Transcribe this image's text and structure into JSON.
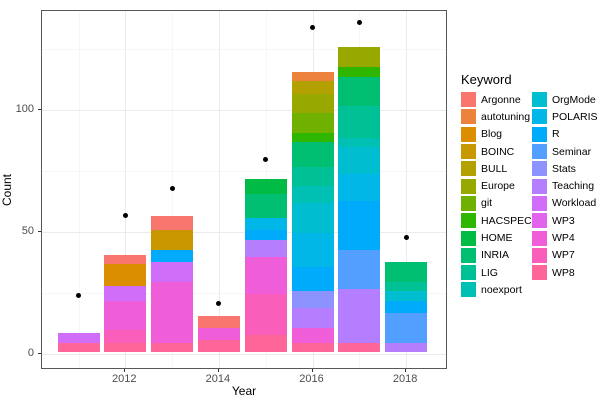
{
  "figure": {
    "legend": {
      "title": "Keyword",
      "entries": [
        "Argonne",
        "autotuning",
        "Blog",
        "BOINC",
        "BULL",
        "Europe",
        "git",
        "HACSPECIS",
        "HOME",
        "INRIA",
        "LIG",
        "noexport",
        "OrgMode",
        "POLARIS",
        "R",
        "Seminar",
        "Stats",
        "Teaching",
        "Workload",
        "WP3",
        "WP4",
        "WP7",
        "WP8"
      ]
    },
    "palette": {
      "Argonne": "#F8766D",
      "autotuning": "#EC823C",
      "Blog": "#DB8E00",
      "BOINC": "#C99800",
      "BULL": "#B2A100",
      "Europe": "#97A900",
      "git": "#6FB000",
      "HACSPECIS": "#2FB600",
      "HOME": "#00BB44",
      "INRIA": "#00BF73",
      "LIG": "#00C096",
      "noexport": "#00C0B4",
      "OrgMode": "#00BDD0",
      "POLARIS": "#00B7E8",
      "R": "#00ABFC",
      "Seminar": "#529FFF",
      "Stats": "#8C93FF",
      "Teaching": "#B57EFF",
      "Workload": "#D06DF9",
      "WP3": "#E264EC",
      "WP4": "#EF5DD8",
      "WP7": "#F95EBB",
      "WP8": "#FE6598"
    },
    "point_color": "#000000",
    "grid_major_color": "#ebebeb",
    "grid_minor_color": "#f6f6f6"
  },
  "chart_data": {
    "type": "bar",
    "subtype": "stacked-bars-with-points",
    "title": "",
    "xlabel": "Year",
    "ylabel": "Count",
    "x": [
      2011,
      2012,
      2013,
      2014,
      2015,
      2016,
      2017,
      2018
    ],
    "x_tick_labels": [
      "2012",
      "2014",
      "2016",
      "2018"
    ],
    "x_ticks": [
      2012,
      2014,
      2016,
      2018
    ],
    "x_minor": [
      2011,
      2013,
      2015,
      2017
    ],
    "y_tick_labels": [
      "0",
      "50",
      "100"
    ],
    "y_ticks": [
      0,
      50,
      100
    ],
    "y_minor": [
      25,
      75,
      125
    ],
    "ylim": [
      -6,
      141
    ],
    "grid": true,
    "legend_position": "right",
    "stacks": [
      {
        "year": 2011,
        "total": 8,
        "segments": [
          {
            "keyword": "Workload",
            "value": 4
          },
          {
            "keyword": "WP8",
            "value": 4
          }
        ]
      },
      {
        "year": 2012,
        "total": 40,
        "segments": [
          {
            "keyword": "Argonne",
            "value": 4
          },
          {
            "keyword": "Blog",
            "value": 9
          },
          {
            "keyword": "Workload",
            "value": 6
          },
          {
            "keyword": "WP4",
            "value": 12
          },
          {
            "keyword": "WP7",
            "value": 5
          },
          {
            "keyword": "WP8",
            "value": 4
          }
        ]
      },
      {
        "year": 2013,
        "total": 56,
        "segments": [
          {
            "keyword": "Argonne",
            "value": 6
          },
          {
            "keyword": "BOINC",
            "value": 8
          },
          {
            "keyword": "R",
            "value": 5
          },
          {
            "keyword": "Workload",
            "value": 8
          },
          {
            "keyword": "WP4",
            "value": 25
          },
          {
            "keyword": "WP8",
            "value": 4
          }
        ]
      },
      {
        "year": 2014,
        "total": 15,
        "segments": [
          {
            "keyword": "Argonne",
            "value": 5
          },
          {
            "keyword": "WP4",
            "value": 5
          },
          {
            "keyword": "WP8",
            "value": 5
          }
        ]
      },
      {
        "year": 2015,
        "total": 71,
        "segments": [
          {
            "keyword": "HOME",
            "value": 6
          },
          {
            "keyword": "INRIA",
            "value": 10
          },
          {
            "keyword": "POLARIS",
            "value": 5
          },
          {
            "keyword": "R",
            "value": 4
          },
          {
            "keyword": "Teaching",
            "value": 7
          },
          {
            "keyword": "WP4",
            "value": 15
          },
          {
            "keyword": "WP7",
            "value": 17
          },
          {
            "keyword": "WP8",
            "value": 7
          }
        ]
      },
      {
        "year": 2016,
        "total": 115,
        "segments": [
          {
            "keyword": "autotuning",
            "value": 4
          },
          {
            "keyword": "BULL",
            "value": 5
          },
          {
            "keyword": "Europe",
            "value": 8
          },
          {
            "keyword": "git",
            "value": 8
          },
          {
            "keyword": "HACSPECIS",
            "value": 4
          },
          {
            "keyword": "INRIA",
            "value": 10
          },
          {
            "keyword": "LIG",
            "value": 8
          },
          {
            "keyword": "noexport",
            "value": 7
          },
          {
            "keyword": "OrgMode",
            "value": 12
          },
          {
            "keyword": "POLARIS",
            "value": 14
          },
          {
            "keyword": "R",
            "value": 10
          },
          {
            "keyword": "Stats",
            "value": 7
          },
          {
            "keyword": "Teaching",
            "value": 8
          },
          {
            "keyword": "WP4",
            "value": 6
          },
          {
            "keyword": "WP8",
            "value": 4
          }
        ]
      },
      {
        "year": 2017,
        "total": 125,
        "segments": [
          {
            "keyword": "Europe",
            "value": 8
          },
          {
            "keyword": "HACSPECIS",
            "value": 4
          },
          {
            "keyword": "INRIA",
            "value": 12
          },
          {
            "keyword": "LIG",
            "value": 13
          },
          {
            "keyword": "noexport",
            "value": 4
          },
          {
            "keyword": "OrgMode",
            "value": 11
          },
          {
            "keyword": "POLARIS",
            "value": 11
          },
          {
            "keyword": "R",
            "value": 20
          },
          {
            "keyword": "Seminar",
            "value": 16
          },
          {
            "keyword": "Teaching",
            "value": 22
          },
          {
            "keyword": "WP8",
            "value": 4
          }
        ]
      },
      {
        "year": 2018,
        "total": 37,
        "segments": [
          {
            "keyword": "INRIA",
            "value": 8
          },
          {
            "keyword": "LIG",
            "value": 4
          },
          {
            "keyword": "OrgMode",
            "value": 4
          },
          {
            "keyword": "R",
            "value": 5
          },
          {
            "keyword": "Seminar",
            "value": 12
          },
          {
            "keyword": "Teaching",
            "value": 4
          }
        ]
      }
    ],
    "points": [
      {
        "year": 2011,
        "value": 24
      },
      {
        "year": 2012,
        "value": 57
      },
      {
        "year": 2013,
        "value": 68
      },
      {
        "year": 2014,
        "value": 21
      },
      {
        "year": 2015,
        "value": 80
      },
      {
        "year": 2016,
        "value": 134
      },
      {
        "year": 2017,
        "value": 136
      },
      {
        "year": 2018,
        "value": 48
      }
    ]
  }
}
